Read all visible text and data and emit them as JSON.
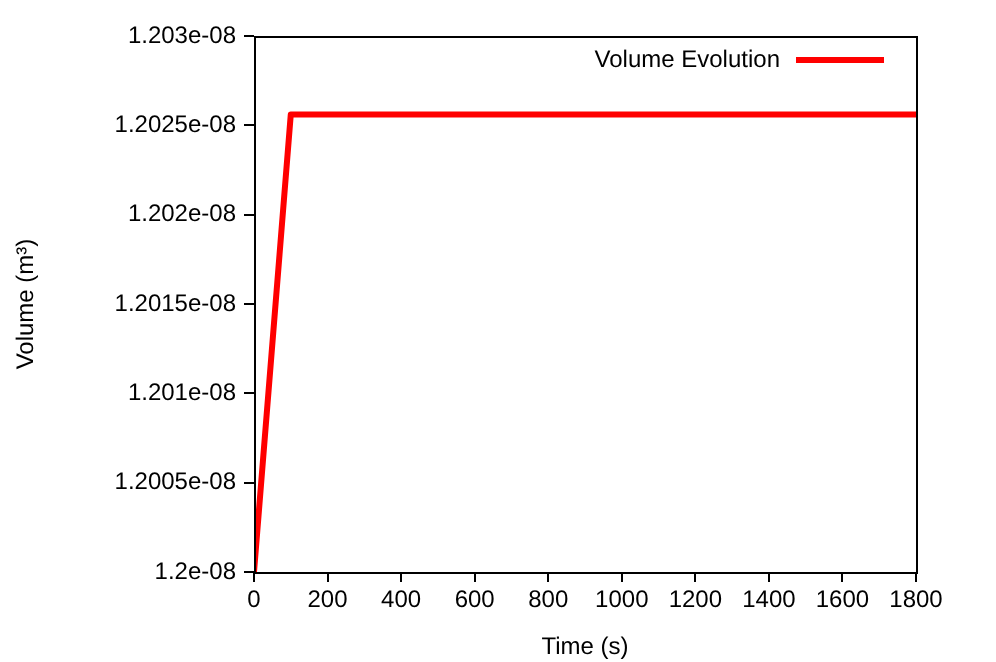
{
  "chart_data": {
    "type": "line",
    "xlabel": "Time (s)",
    "ylabel": "Volume (m³)",
    "x": [
      0,
      100,
      1800
    ],
    "series": [
      {
        "name": "Volume Evolution",
        "color": "#ff0000",
        "values": [
          1.2e-08,
          1.20256e-08,
          1.20256e-08
        ]
      }
    ],
    "xlim": [
      0,
      1800
    ],
    "xticks": [
      0,
      200,
      400,
      600,
      800,
      1000,
      1200,
      1400,
      1600,
      1800
    ],
    "ylim": [
      1.2e-08,
      1.203e-08
    ],
    "yticks": [
      {
        "value": 1.2e-08,
        "label": "1.2e-08"
      },
      {
        "value": 1.2005e-08,
        "label": "1.2005e-08"
      },
      {
        "value": 1.201e-08,
        "label": "1.201e-08"
      },
      {
        "value": 1.2015e-08,
        "label": "1.2015e-08"
      },
      {
        "value": 1.202e-08,
        "label": "1.202e-08"
      },
      {
        "value": 1.2025e-08,
        "label": "1.2025e-08"
      },
      {
        "value": 1.203e-08,
        "label": "1.203e-08"
      }
    ],
    "grid": false,
    "legend": "top right",
    "marker": "none",
    "line_style": "solid"
  }
}
